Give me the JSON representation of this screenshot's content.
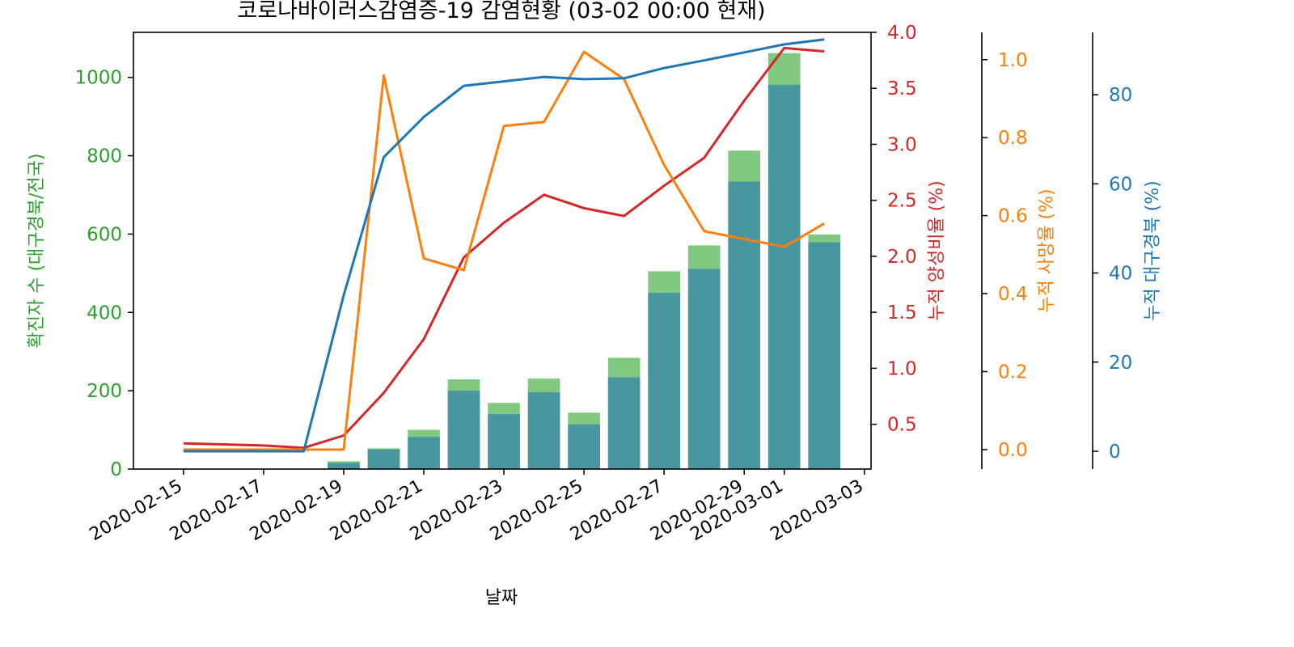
{
  "chart_data": {
    "type": "bar",
    "title": "코로나바이러스감염증-19 감염현황 (03-02 00:00 현재)",
    "xlabel": "날짜",
    "x_ticks": [
      "2020-02-15",
      "2020-02-17",
      "2020-02-19",
      "2020-02-21",
      "2020-02-23",
      "2020-02-25",
      "2020-02-27",
      "2020-02-29",
      "2020-03-01",
      "2020-03-03"
    ],
    "x_range": [
      "2020-02-13T18:00",
      "2020-03-03T04:00"
    ],
    "dates": [
      "2020-02-15",
      "2020-02-16",
      "2020-02-17",
      "2020-02-18",
      "2020-02-19",
      "2020-02-20",
      "2020-02-21",
      "2020-02-22",
      "2020-02-23",
      "2020-02-24",
      "2020-02-25",
      "2020-02-26",
      "2020-02-27",
      "2020-02-28",
      "2020-02-29",
      "2020-03-01",
      "2020-03-02"
    ],
    "y_axes": [
      {
        "id": "cases",
        "label": "확진자 수 (대구경북/전국)",
        "color": "#2ca02c",
        "ylim": [
          0,
          1115
        ],
        "ticks": [
          0,
          200,
          400,
          600,
          800,
          1000
        ]
      },
      {
        "id": "positivity",
        "label": "누적 양성비율 (%)",
        "color": "#d62728",
        "ylim": [
          0.1,
          4.0
        ],
        "ticks": [
          0.5,
          1.0,
          1.5,
          2.0,
          2.5,
          3.0,
          3.5,
          4.0
        ],
        "tick_labels": [
          "0.5",
          "1.0",
          "1.5",
          "2.0",
          "2.5",
          "3.0",
          "3.5",
          "4.0"
        ]
      },
      {
        "id": "mortality",
        "label": "누적 사망율 (%)",
        "color": "#ff7f0e",
        "ylim": [
          -0.05,
          1.07
        ],
        "ticks": [
          0.0,
          0.2,
          0.4,
          0.6,
          0.8,
          1.0
        ],
        "tick_labels": [
          "0.0",
          "0.2",
          "0.4",
          "0.6",
          "0.8",
          "1.0"
        ]
      },
      {
        "id": "daegu_share",
        "label": "누적 대구경북 (%)",
        "color": "#1f77b4",
        "ylim": [
          -4,
          94
        ],
        "ticks": [
          0,
          20,
          40,
          60,
          80
        ]
      }
    ],
    "series": [
      {
        "name": "전국",
        "type": "bar",
        "axis": "cases",
        "color": "#80c880",
        "values": [
          0,
          0,
          0,
          0,
          20,
          53,
          100,
          229,
          169,
          231,
          144,
          284,
          505,
          571,
          813,
          1062,
          599
        ]
      },
      {
        "name": "대구경북",
        "type": "bar",
        "axis": "cases",
        "color": "#4796a0",
        "values": [
          0,
          0,
          0,
          0,
          16,
          50,
          82,
          200,
          140,
          196,
          114,
          234,
          450,
          511,
          734,
          981,
          579
        ]
      },
      {
        "name": "누적 양성비율",
        "type": "line",
        "axis": "positivity",
        "color": "#d62728",
        "values": [
          0.33,
          0.32,
          0.31,
          0.29,
          0.4,
          0.78,
          1.26,
          1.99,
          2.3,
          2.55,
          2.43,
          2.36,
          2.63,
          2.88,
          3.39,
          3.86,
          3.83
        ]
      },
      {
        "name": "누적 사망율",
        "type": "line",
        "axis": "mortality",
        "color": "#ff7f0e",
        "values": [
          0.0,
          0.0,
          0.0,
          0.0,
          0.0,
          0.96,
          0.49,
          0.46,
          0.83,
          0.84,
          1.02,
          0.95,
          0.73,
          0.56,
          0.54,
          0.52,
          0.58
        ]
      },
      {
        "name": "누적 대구경북",
        "type": "line",
        "axis": "daegu_share",
        "color": "#1f77b4",
        "values": [
          0,
          0,
          0,
          0,
          35,
          66,
          75,
          82,
          83,
          84,
          83.5,
          83.7,
          86,
          87.7,
          89.5,
          91.3,
          92.4
        ]
      }
    ]
  }
}
